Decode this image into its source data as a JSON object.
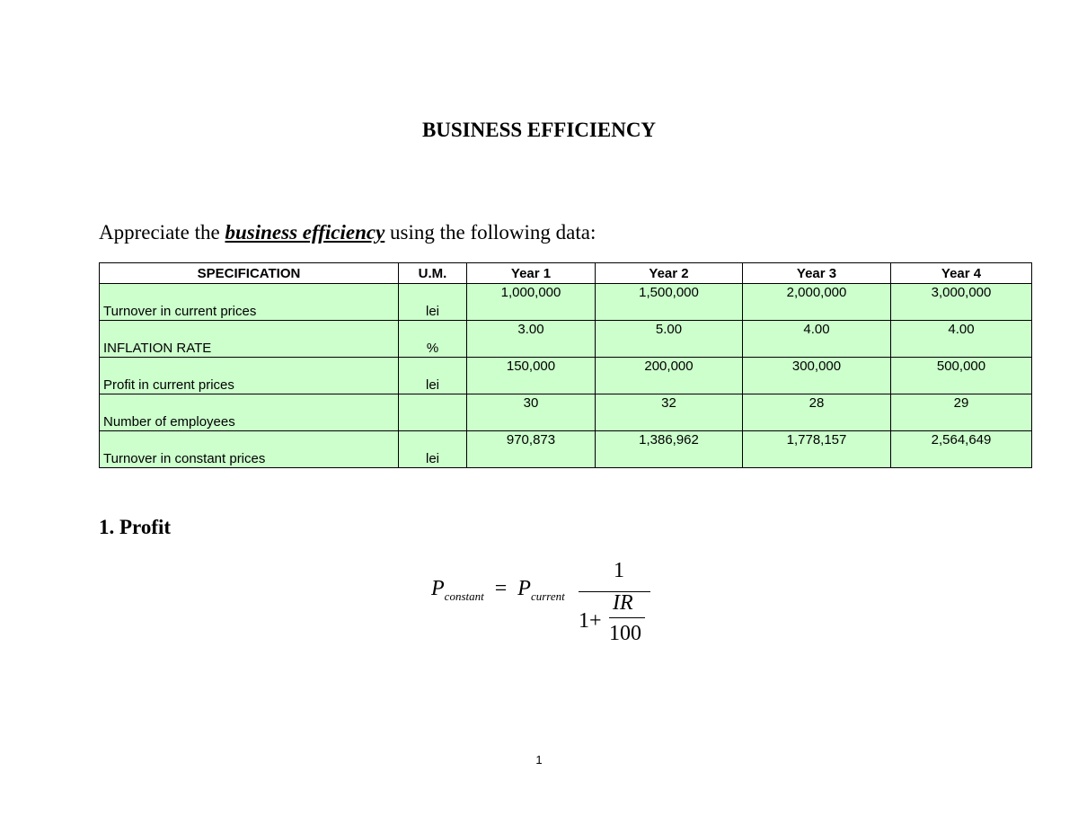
{
  "title": "BUSINESS EFFICIENCY",
  "intro": {
    "before": "Appreciate the ",
    "emphasis": "business efficiency",
    "after": " using the following data:"
  },
  "table": {
    "headers": [
      "SPECIFICATION",
      "U.M.",
      "Year 1",
      "Year 2",
      "Year 3",
      "Year 4"
    ],
    "rows": [
      {
        "spec": "Turnover in current prices",
        "um": "lei",
        "values": [
          "1,000,000",
          "1,500,000",
          "2,000,000",
          "3,000,000"
        ]
      },
      {
        "spec": "INFLATION RATE",
        "um": "%",
        "values": [
          "3.00",
          "5.00",
          "4.00",
          "4.00"
        ]
      },
      {
        "spec": "Profit in current prices",
        "um": "lei",
        "values": [
          "150,000",
          "200,000",
          "300,000",
          "500,000"
        ]
      },
      {
        "spec": "Number of employees",
        "um": "",
        "values": [
          "30",
          "32",
          "28",
          "29"
        ]
      },
      {
        "spec": "Turnover in constant prices",
        "um": "lei",
        "values": [
          "970,873",
          "1,386,962",
          "1,778,157",
          "2,564,649"
        ]
      }
    ],
    "cell_color": "#ccffcc"
  },
  "section": "1. Profit",
  "formula": {
    "lhs": "P",
    "lhs_sub": "constant",
    "eq": "=",
    "rhs": "P",
    "rhs_sub": "current",
    "numerator": "1",
    "one_plus": "1+",
    "ir": "IR",
    "hundred": "100"
  },
  "page_number": "1"
}
